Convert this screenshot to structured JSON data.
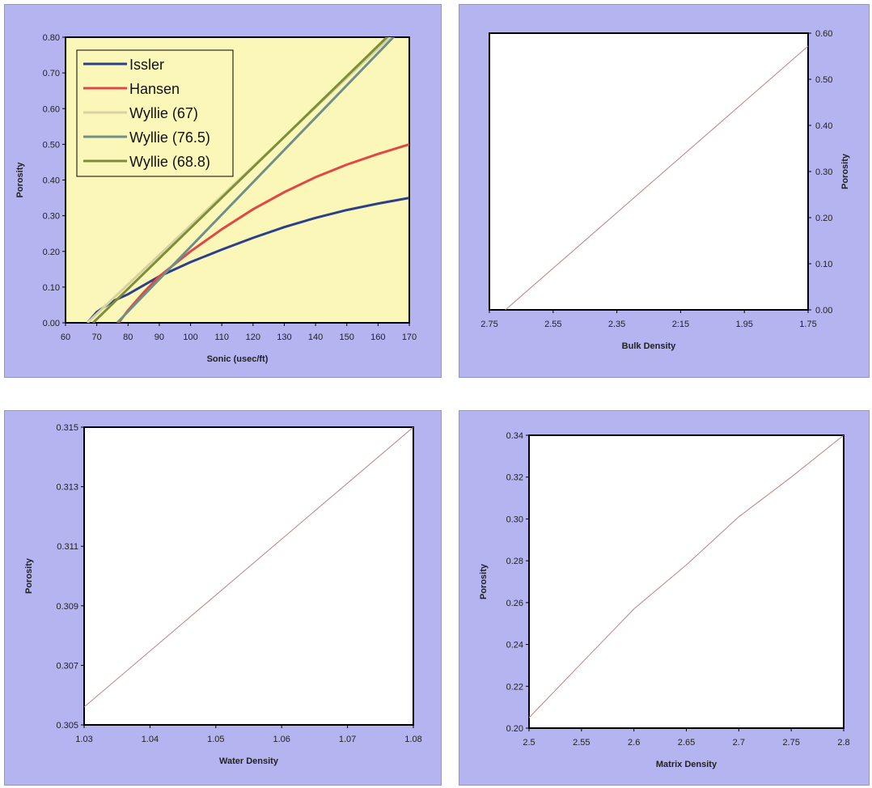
{
  "colors": {
    "panel_bg": "#b4b4f0",
    "plot_bg_chart1": "#fbf7b8",
    "plot_bg": "#ffffff",
    "issler": "#2b3f8a",
    "hansen": "#e04848",
    "wyllie_67": "#d8d2a0",
    "wyllie_76_5": "#6f8f8a",
    "wyllie_68_8": "#7c8e3a",
    "single_line": "#c08080"
  },
  "chart_data": [
    {
      "type": "line",
      "xlabel": "Sonic (usec/ft)",
      "ylabel": "Porosity",
      "xlim": [
        60,
        170
      ],
      "ylim": [
        0.0,
        0.8
      ],
      "x_ticks": [
        "60",
        "70",
        "80",
        "90",
        "100",
        "110",
        "120",
        "130",
        "140",
        "150",
        "160",
        "170"
      ],
      "y_ticks": [
        "0.00",
        "0.10",
        "0.20",
        "0.30",
        "0.40",
        "0.50",
        "0.60",
        "0.70",
        "0.80"
      ],
      "legend_position": "top-left",
      "grid": false,
      "series": [
        {
          "name": "Issler",
          "color_key": "issler",
          "x": [
            67,
            70,
            75,
            80,
            90,
            100,
            110,
            120,
            130,
            140,
            150,
            160,
            170
          ],
          "y": [
            0.0,
            0.03,
            0.06,
            0.08,
            0.13,
            0.17,
            0.205,
            0.238,
            0.268,
            0.294,
            0.316,
            0.334,
            0.35
          ]
        },
        {
          "name": "Hansen",
          "color_key": "hansen",
          "x": [
            77,
            80,
            85,
            90,
            100,
            110,
            120,
            130,
            140,
            150,
            160,
            170
          ],
          "y": [
            0.0,
            0.035,
            0.085,
            0.13,
            0.2,
            0.262,
            0.318,
            0.366,
            0.408,
            0.443,
            0.473,
            0.5
          ]
        },
        {
          "name": "Wyllie (67)",
          "color_key": "wyllie_67",
          "x": [
            67,
            165
          ],
          "y": [
            0.0,
            0.81
          ]
        },
        {
          "name": "Wyllie (76.5)",
          "color_key": "wyllie_76_5",
          "x": [
            76.5,
            166
          ],
          "y": [
            0.0,
            0.81
          ]
        },
        {
          "name": "Wyllie (68.8)",
          "color_key": "wyllie_68_8",
          "x": [
            68.8,
            164
          ],
          "y": [
            0.0,
            0.81
          ]
        }
      ]
    },
    {
      "type": "line",
      "xlabel": "Bulk Density",
      "ylabel": "Porosity",
      "xlim": [
        2.75,
        1.75
      ],
      "ylim": [
        0.0,
        0.6
      ],
      "x_ticks": [
        "2.75",
        "2.55",
        "2.35",
        "2:15",
        "1.95",
        "1.75"
      ],
      "y_ticks": [
        "0.00",
        "0.10",
        "0.20",
        "0.30",
        "0.40",
        "0.50",
        "0.60"
      ],
      "y_axis_side": "right",
      "series": [
        {
          "name": "",
          "color_key": "single_line",
          "x": [
            2.7,
            1.75
          ],
          "y": [
            0.0,
            0.572
          ]
        }
      ]
    },
    {
      "type": "line",
      "xlabel": "Water Density",
      "ylabel": "Porosity",
      "xlim": [
        1.03,
        1.08
      ],
      "ylim": [
        0.305,
        0.315
      ],
      "x_ticks": [
        "1.03",
        "1.04",
        "1.05",
        "1.06",
        "1.07",
        "1.08"
      ],
      "y_ticks": [
        "0.305",
        "0.307",
        "0.309",
        "0.311",
        "0.313",
        "0.315"
      ],
      "series": [
        {
          "name": "",
          "color_key": "single_line",
          "x": [
            1.03,
            1.08
          ],
          "y": [
            0.3056,
            0.315
          ]
        }
      ]
    },
    {
      "type": "line",
      "xlabel": "Matrix Density",
      "ylabel": "Porosity",
      "xlim": [
        2.5,
        2.8
      ],
      "ylim": [
        0.2,
        0.34
      ],
      "x_ticks": [
        "2.5",
        "2.55",
        "2.6",
        "2.65",
        "2.7",
        "2.75",
        "2.8"
      ],
      "y_ticks": [
        "0.20",
        "0.22",
        "0.24",
        "0.26",
        "0.28",
        "0.30",
        "0.32",
        "0.34"
      ],
      "series": [
        {
          "name": "",
          "color_key": "single_line",
          "x": [
            2.5,
            2.55,
            2.6,
            2.65,
            2.7,
            2.75,
            2.8
          ],
          "y": [
            0.205,
            0.231,
            0.257,
            0.278,
            0.301,
            0.32,
            0.34
          ]
        }
      ]
    }
  ]
}
